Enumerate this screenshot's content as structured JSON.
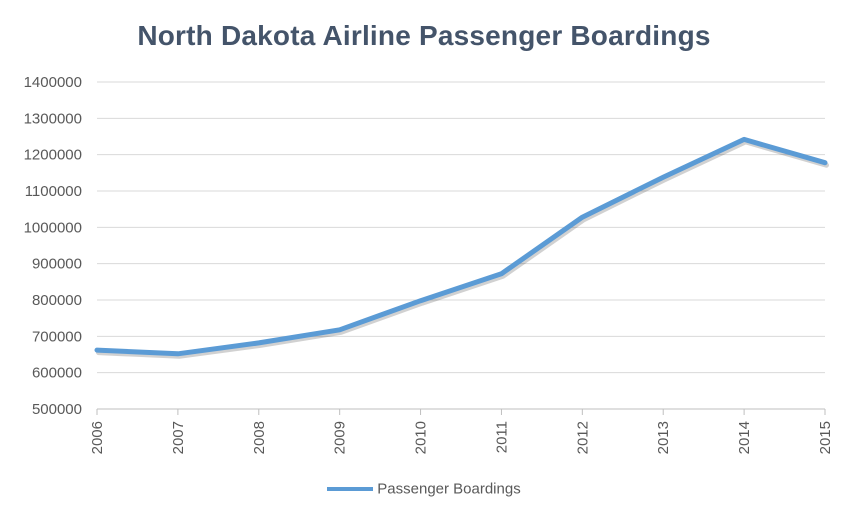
{
  "chart_data": {
    "type": "line",
    "title": "North Dakota Airline Passenger Boardings",
    "xlabel": "",
    "ylabel": "",
    "x": [
      "2006",
      "2007",
      "2008",
      "2009",
      "2010",
      "2011",
      "2012",
      "2013",
      "2014",
      "2015"
    ],
    "series": [
      {
        "name": "Passenger Boardings",
        "values": [
          662000,
          652000,
          682000,
          718000,
          798000,
          872000,
          1028000,
          1138000,
          1242000,
          1178000
        ],
        "color": "#5b9bd5"
      }
    ],
    "ylim": [
      500000,
      1400000
    ],
    "yticks": [
      "500000",
      "600000",
      "700000",
      "800000",
      "900000",
      "1000000",
      "1100000",
      "1200000",
      "1300000",
      "1400000"
    ],
    "grid": true,
    "legend_position": "bottom"
  }
}
